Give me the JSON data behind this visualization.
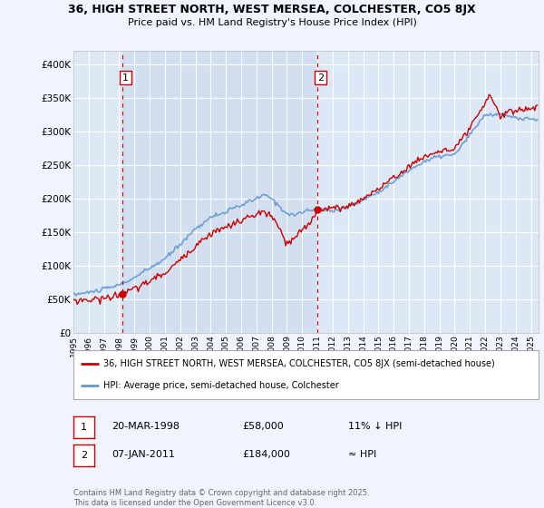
{
  "title_line1": "36, HIGH STREET NORTH, WEST MERSEA, COLCHESTER, CO5 8JX",
  "title_line2": "Price paid vs. HM Land Registry's House Price Index (HPI)",
  "legend_line1": "36, HIGH STREET NORTH, WEST MERSEA, COLCHESTER, CO5 8JX (semi-detached house)",
  "legend_line2": "HPI: Average price, semi-detached house, Colchester",
  "sale1_date": "20-MAR-1998",
  "sale1_price": "£58,000",
  "sale1_hpi": "11% ↓ HPI",
  "sale2_date": "07-JAN-2011",
  "sale2_price": "£184,000",
  "sale2_hpi": "≈ HPI",
  "footnote": "Contains HM Land Registry data © Crown copyright and database right 2025.\nThis data is licensed under the Open Government Licence v3.0.",
  "background_color": "#f0f4ff",
  "plot_bg_color": "#dce8f5",
  "shaded_region_color": "#c8d8ef",
  "red_line_color": "#cc0000",
  "blue_line_color": "#6699cc",
  "dashed_line_color": "#cc0000",
  "grid_color": "#ffffff",
  "ylim_min": 0,
  "ylim_max": 420000,
  "xmin_year": 1995.0,
  "xmax_year": 2025.5,
  "sale1_x": 1998.22,
  "sale2_x": 2011.02,
  "sale1_y": 58000,
  "sale2_y": 184000,
  "yticks": [
    0,
    50000,
    100000,
    150000,
    200000,
    250000,
    300000,
    350000,
    400000
  ],
  "ytick_labels": [
    "£0",
    "£50K",
    "£100K",
    "£150K",
    "£200K",
    "£250K",
    "£300K",
    "£350K",
    "£400K"
  ],
  "xticks": [
    1995,
    1996,
    1997,
    1998,
    1999,
    2000,
    2001,
    2002,
    2003,
    2004,
    2005,
    2006,
    2007,
    2008,
    2009,
    2010,
    2011,
    2012,
    2013,
    2014,
    2015,
    2016,
    2017,
    2018,
    2019,
    2020,
    2021,
    2022,
    2023,
    2024,
    2025
  ]
}
